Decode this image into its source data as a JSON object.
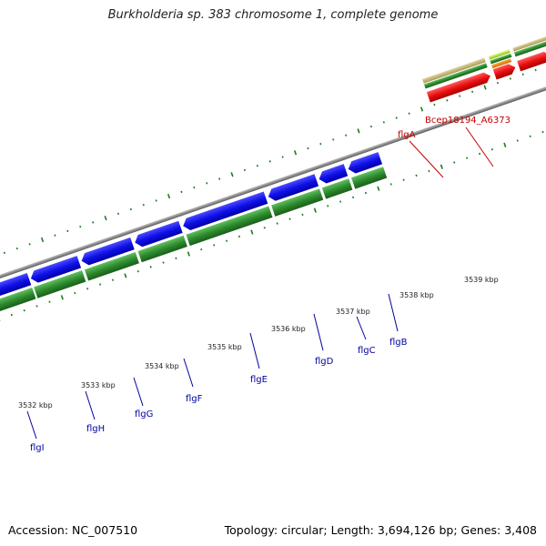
{
  "title": "Burkholderia sp. 383 chromosome 1, complete genome",
  "footer": {
    "accession": "Accession: NC_007510",
    "summary": "Topology: circular; Length: 3,694,126 bp; Genes: 3,408"
  },
  "colors": {
    "backbone": "#8c8c8c",
    "forward_gene": "#1010e8",
    "cds_feature": "#2e8b2e",
    "rna_feature": "#e81010",
    "misc_feature": "#c8b878",
    "tick": "#1f7a1f",
    "gene_label": "#0000a0",
    "rna_label": "#c00000"
  },
  "ticks": [
    {
      "label": "3532 kbp"
    },
    {
      "label": "3533 kbp"
    },
    {
      "label": "3534 kbp"
    },
    {
      "label": "3535 kbp"
    },
    {
      "label": "3536 kbp"
    },
    {
      "label": "3537 kbp"
    },
    {
      "label": "3538 kbp"
    },
    {
      "label": "3539 kbp"
    }
  ],
  "genes": [
    {
      "name": "flgI"
    },
    {
      "name": "flgH"
    },
    {
      "name": "flgG"
    },
    {
      "name": "flgF"
    },
    {
      "name": "flgE"
    },
    {
      "name": "flgD"
    },
    {
      "name": "flgC"
    },
    {
      "name": "flgB"
    }
  ],
  "top_labels": [
    {
      "name": "flgA"
    },
    {
      "name": "Bcep18194_A6373"
    }
  ]
}
